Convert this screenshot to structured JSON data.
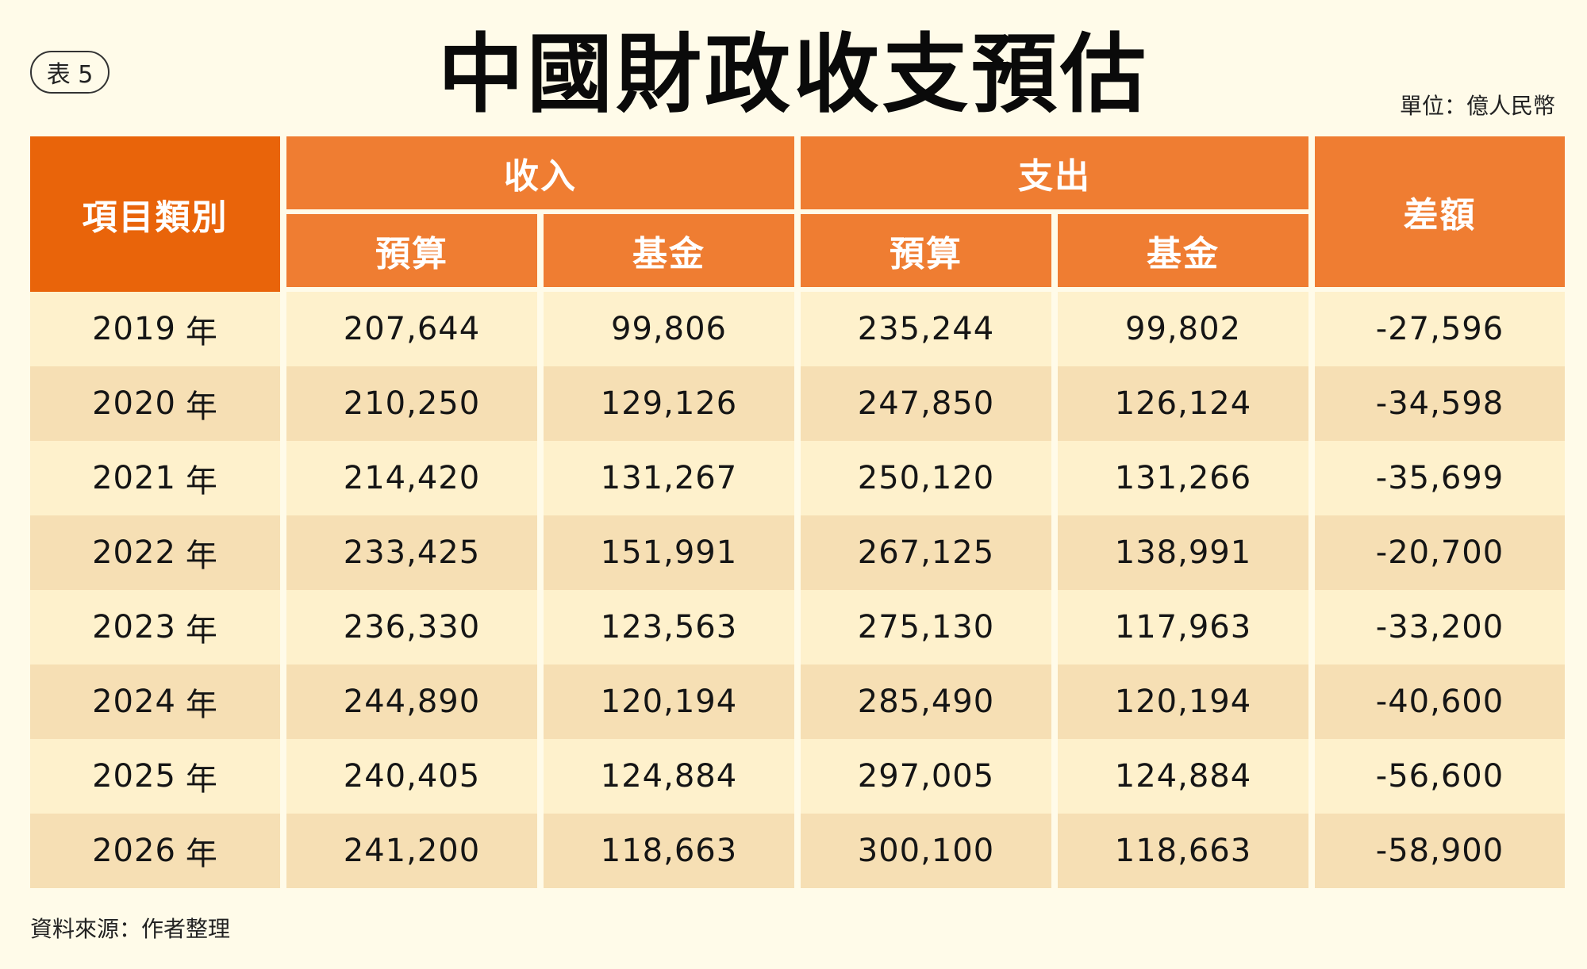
{
  "tag": "表 5",
  "title": "中國財政收支預估",
  "unit": "單位：億人民幣",
  "source": "資料來源：作者整理",
  "headers": {
    "category": "項目類別",
    "income": "收入",
    "expenditure": "支出",
    "difference": "差額",
    "budget": "預算",
    "fund": "基金"
  },
  "colors": {
    "header_main": "#e9640a",
    "header_sub": "#ef7d32",
    "row_light": "#fef1cc",
    "row_dark": "#f6dfb4",
    "background": "#fffbe9"
  },
  "rows": [
    {
      "year": "2019",
      "suffix": "年",
      "income_budget": "207,644",
      "income_fund": "99,806",
      "exp_budget": "235,244",
      "exp_fund": "99,802",
      "diff": "-27,596"
    },
    {
      "year": "2020",
      "suffix": "年",
      "income_budget": "210,250",
      "income_fund": "129,126",
      "exp_budget": "247,850",
      "exp_fund": "126,124",
      "diff": "-34,598"
    },
    {
      "year": "2021",
      "suffix": "年",
      "income_budget": "214,420",
      "income_fund": "131,267",
      "exp_budget": "250,120",
      "exp_fund": "131,266",
      "diff": "-35,699"
    },
    {
      "year": "2022",
      "suffix": "年",
      "income_budget": "233,425",
      "income_fund": "151,991",
      "exp_budget": "267,125",
      "exp_fund": "138,991",
      "diff": "-20,700"
    },
    {
      "year": "2023",
      "suffix": "年",
      "income_budget": "236,330",
      "income_fund": "123,563",
      "exp_budget": "275,130",
      "exp_fund": "117,963",
      "diff": "-33,200"
    },
    {
      "year": "2024",
      "suffix": "年",
      "income_budget": "244,890",
      "income_fund": "120,194",
      "exp_budget": "285,490",
      "exp_fund": "120,194",
      "diff": "-40,600"
    },
    {
      "year": "2025",
      "suffix": "年",
      "income_budget": "240,405",
      "income_fund": "124,884",
      "exp_budget": "297,005",
      "exp_fund": "124,884",
      "diff": "-56,600"
    },
    {
      "year": "2026",
      "suffix": "年",
      "income_budget": "241,200",
      "income_fund": "118,663",
      "exp_budget": "300,100",
      "exp_fund": "118,663",
      "diff": "-58,900"
    }
  ]
}
